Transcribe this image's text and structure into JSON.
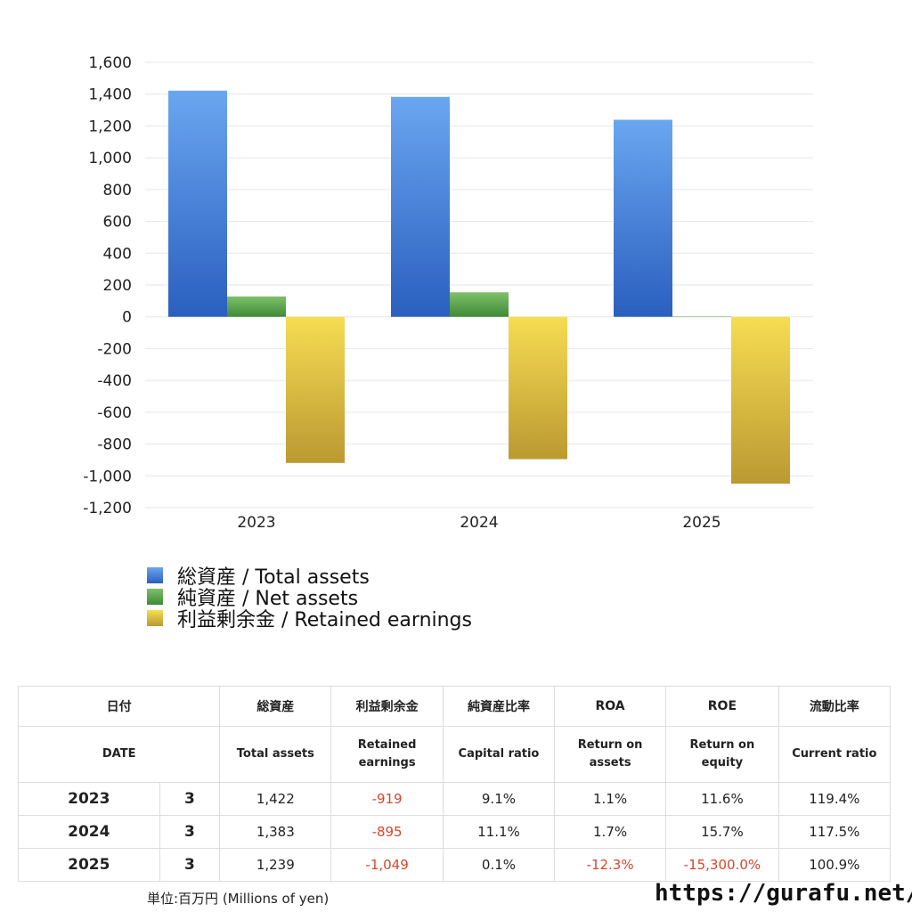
{
  "chart_data": {
    "type": "bar",
    "categories": [
      "2023",
      "2024",
      "2025"
    ],
    "series": [
      {
        "name": "総資産 / Total assets",
        "values": [
          1422,
          1383,
          1239
        ],
        "color_top": "#6aa6f0",
        "color_bottom": "#2a5fbf"
      },
      {
        "name": "純資産 / Net assets",
        "values": [
          128,
          154,
          1
        ],
        "color_top": "#7dc06a",
        "color_bottom": "#3f8a36"
      },
      {
        "name": "利益剰余金 / Retained earnings",
        "values": [
          -919,
          -895,
          -1049
        ],
        "color_top": "#f6dd52",
        "color_bottom": "#bb9932"
      }
    ],
    "ylim": [
      -1200,
      1600
    ],
    "yticks": [
      "1,600",
      "1,400",
      "1,200",
      "1,000",
      "800",
      "600",
      "400",
      "200",
      "0",
      "-200",
      "-400",
      "-600",
      "-800",
      "-1,000",
      "-1,200"
    ],
    "grid": true,
    "legend_position": "bottom-left"
  },
  "table": {
    "headers_jp": [
      "日付",
      "総資産",
      "利益剰余金",
      "純資産比率",
      "ROA",
      "ROE",
      "流動比率"
    ],
    "headers_en": [
      "DATE",
      "Total assets",
      "Retained earnings",
      "Capital ratio",
      "Return on assets",
      "Return on equity",
      "Current ratio"
    ],
    "rows": [
      {
        "year": "2023",
        "month": "3",
        "total_assets": "1,422",
        "retained": "-919",
        "capital_ratio": "9.1%",
        "roa": "1.1%",
        "roe": "11.6%",
        "current_ratio": "119.4%"
      },
      {
        "year": "2024",
        "month": "3",
        "total_assets": "1,383",
        "retained": "-895",
        "capital_ratio": "11.1%",
        "roa": "1.7%",
        "roe": "15.7%",
        "current_ratio": "117.5%"
      },
      {
        "year": "2025",
        "month": "3",
        "total_assets": "1,239",
        "retained": "-1,049",
        "capital_ratio": "0.1%",
        "roa": "-12.3%",
        "roe": "-15,300.0%",
        "current_ratio": "100.9%"
      }
    ]
  },
  "footer": {
    "unit": "単位:百万円 (Millions of yen)",
    "site": "https://gurafu.net/"
  }
}
